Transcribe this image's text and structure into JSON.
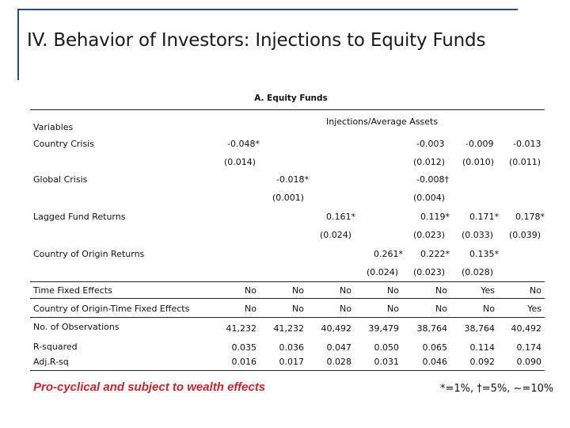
{
  "title": "IV. Behavior of Investors: Injections  to Equity Funds",
  "panel_title": "A. Equity Funds",
  "header": {
    "variables": "Variables",
    "dependent": "Injections/Average Assets"
  },
  "rows": [
    {
      "label": "Country Crisis",
      "coef": [
        "-0.048*",
        "",
        "",
        "-0.003",
        "-0.009",
        "-0.013"
      ],
      "se": [
        "(0.014)",
        "",
        "",
        "(0.012)",
        "(0.010)",
        "(0.011)"
      ]
    },
    {
      "label": "Global Crisis",
      "coef": [
        "-0.018*",
        "",
        "",
        "-0.008†"
      ],
      "se": [
        "(0.001)",
        "",
        "",
        "(0.004)"
      ]
    },
    {
      "label": "Lagged Fund Returns",
      "coef": [
        "0.161*",
        "0.119*",
        "0.171*",
        "0.178*"
      ],
      "se": [
        "(0.024)",
        "(0.023)",
        "(0.033)",
        "(0.039)"
      ]
    },
    {
      "label": "Country of Origin Returns",
      "coef": [
        "0.261*",
        "0.222*",
        "0.135*"
      ],
      "se": [
        "(0.024)",
        "(0.023)",
        "(0.028)"
      ]
    }
  ],
  "time_fe": {
    "label": "Time Fixed Effects",
    "values": [
      "No",
      "No",
      "No",
      "No",
      "No",
      "Yes",
      "No"
    ]
  },
  "country_fe": {
    "label": "Country of Origin-Time Fixed Effects",
    "values": [
      "No",
      "No",
      "No",
      "No",
      "No",
      "No",
      "Yes"
    ]
  },
  "n_obs": {
    "label": "No. of Observations",
    "values": [
      "41,232",
      "41,232",
      "40,492",
      "39,479",
      "38,764",
      "38,764",
      "40,492"
    ]
  },
  "r2": {
    "label": "R-squared",
    "values": [
      "0.035",
      "0.036",
      "0.047",
      "0.050",
      "0.065",
      "0.114",
      "0.174"
    ]
  },
  "adj_r2": {
    "label": "Adj.R-sq",
    "values": [
      "0.016",
      "0.017",
      "0.028",
      "0.031",
      "0.046",
      "0.092",
      "0.090"
    ]
  },
  "footer_left": "Pro-cyclical and subject to wealth effects",
  "footer_right": "*=1%, †=5%, ~=10%",
  "colors": {
    "frame": "#2f4a7a",
    "footer_text": "#c0282d"
  }
}
